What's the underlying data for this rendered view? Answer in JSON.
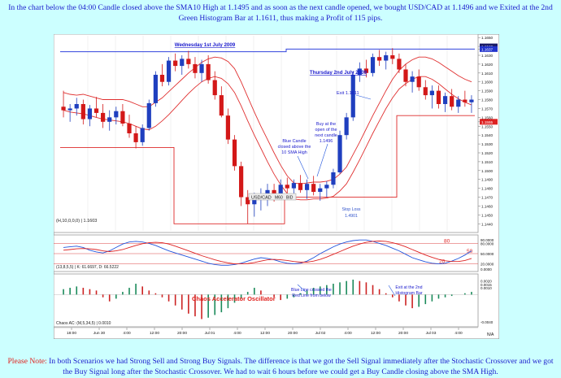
{
  "header_text": "In the chart below the 04:00 Candle closed above the SMA10 High at 1.1495 and as soon as the next candle opened, we bought USD/CAD at 1.1496 and we Exited at the 2nd Green Histogram Bar at 1.1611, thus making a Profit of 115 pips.",
  "footer": {
    "label": "Please Note:",
    "text": " In both Scenarios we had Strong Sell and Strong Buy Signals. The difference is that we got the Sell Signal immediately after the Stochastic Crossover and we got the Buy Signal long after the Stochastic Crossover. We had to wait 6 hours before we could get a Buy Candle closing above the SMA High."
  },
  "chart_data": [
    {
      "type": "candlestick",
      "panel": "price",
      "indicator_label": "(H,10,0,0,0) | 1.1603",
      "price_labels": [
        "1.1650",
        "1.1640",
        "1.1637",
        "1.1630",
        "1.1620",
        "1.1610",
        "1.1600",
        "1.1590",
        "1.1580",
        "1.1570",
        "1.1560",
        "1.1555",
        "1.1550",
        "1.1540",
        "1.1530",
        "1.1520",
        "1.1510",
        "1.1500",
        "1.1490",
        "1.1480",
        "1.1470",
        "1.1460",
        "1.1450",
        "1.1440"
      ],
      "highlighted_prices": {
        "top": "1.1640",
        "mid": "1.1637",
        "last": "1.1555"
      },
      "ylim": [
        1.1432,
        1.1652
      ],
      "candles": [
        {
          "o": 1.1572,
          "h": 1.159,
          "l": 1.156,
          "c": 1.1568
        },
        {
          "o": 1.1568,
          "h": 1.1575,
          "l": 1.1555,
          "c": 1.157
        },
        {
          "o": 1.157,
          "h": 1.1582,
          "l": 1.1562,
          "c": 1.1575
        },
        {
          "o": 1.1575,
          "h": 1.158,
          "l": 1.1552,
          "c": 1.1558
        },
        {
          "o": 1.1558,
          "h": 1.1574,
          "l": 1.155,
          "c": 1.157
        },
        {
          "o": 1.157,
          "h": 1.1583,
          "l": 1.156,
          "c": 1.1565
        },
        {
          "o": 1.1565,
          "h": 1.1575,
          "l": 1.1548,
          "c": 1.1555
        },
        {
          "o": 1.1555,
          "h": 1.1568,
          "l": 1.1545,
          "c": 1.156
        },
        {
          "o": 1.156,
          "h": 1.1572,
          "l": 1.1552,
          "c": 1.1567
        },
        {
          "o": 1.1567,
          "h": 1.1575,
          "l": 1.155,
          "c": 1.1553
        },
        {
          "o": 1.1553,
          "h": 1.1563,
          "l": 1.1537,
          "c": 1.1542
        },
        {
          "o": 1.1542,
          "h": 1.155,
          "l": 1.1525,
          "c": 1.1532
        },
        {
          "o": 1.1532,
          "h": 1.1552,
          "l": 1.1528,
          "c": 1.1548
        },
        {
          "o": 1.1548,
          "h": 1.158,
          "l": 1.1545,
          "c": 1.1576
        },
        {
          "o": 1.1576,
          "h": 1.1612,
          "l": 1.1572,
          "c": 1.1608
        },
        {
          "o": 1.1608,
          "h": 1.162,
          "l": 1.1595,
          "c": 1.16
        },
        {
          "o": 1.16,
          "h": 1.1628,
          "l": 1.1596,
          "c": 1.1624
        },
        {
          "o": 1.1624,
          "h": 1.1632,
          "l": 1.1612,
          "c": 1.1618
        },
        {
          "o": 1.1618,
          "h": 1.163,
          "l": 1.1608,
          "c": 1.1626
        },
        {
          "o": 1.1626,
          "h": 1.1635,
          "l": 1.1615,
          "c": 1.162
        },
        {
          "o": 1.162,
          "h": 1.1628,
          "l": 1.1604,
          "c": 1.161
        },
        {
          "o": 1.161,
          "h": 1.1625,
          "l": 1.16,
          "c": 1.162
        },
        {
          "o": 1.162,
          "h": 1.163,
          "l": 1.1598,
          "c": 1.1602
        },
        {
          "o": 1.1602,
          "h": 1.1612,
          "l": 1.158,
          "c": 1.1585
        },
        {
          "o": 1.1585,
          "h": 1.1595,
          "l": 1.156,
          "c": 1.1562
        },
        {
          "o": 1.1562,
          "h": 1.157,
          "l": 1.153,
          "c": 1.1535
        },
        {
          "o": 1.1535,
          "h": 1.154,
          "l": 1.15,
          "c": 1.1505
        },
        {
          "o": 1.1505,
          "h": 1.151,
          "l": 1.146,
          "c": 1.147
        },
        {
          "o": 1.147,
          "h": 1.1478,
          "l": 1.144,
          "c": 1.1462
        },
        {
          "o": 1.1462,
          "h": 1.1475,
          "l": 1.1448,
          "c": 1.1468
        },
        {
          "o": 1.1468,
          "h": 1.148,
          "l": 1.1455,
          "c": 1.1472
        },
        {
          "o": 1.1472,
          "h": 1.1485,
          "l": 1.146,
          "c": 1.1478
        },
        {
          "o": 1.1478,
          "h": 1.1485,
          "l": 1.1465,
          "c": 1.1474
        },
        {
          "o": 1.1474,
          "h": 1.149,
          "l": 1.1468,
          "c": 1.1484
        },
        {
          "o": 1.1484,
          "h": 1.1492,
          "l": 1.1474,
          "c": 1.148
        },
        {
          "o": 1.148,
          "h": 1.149,
          "l": 1.1472,
          "c": 1.1486
        },
        {
          "o": 1.1486,
          "h": 1.1495,
          "l": 1.1475,
          "c": 1.1478
        },
        {
          "o": 1.1478,
          "h": 1.149,
          "l": 1.1468,
          "c": 1.1485
        },
        {
          "o": 1.1485,
          "h": 1.1494,
          "l": 1.1472,
          "c": 1.1476
        },
        {
          "o": 1.1476,
          "h": 1.1485,
          "l": 1.1466,
          "c": 1.148
        },
        {
          "o": 1.148,
          "h": 1.1488,
          "l": 1.147,
          "c": 1.1484
        },
        {
          "o": 1.1484,
          "h": 1.1502,
          "l": 1.148,
          "c": 1.1498
        },
        {
          "o": 1.1498,
          "h": 1.1545,
          "l": 1.1496,
          "c": 1.154
        },
        {
          "o": 1.154,
          "h": 1.1565,
          "l": 1.1535,
          "c": 1.156
        },
        {
          "o": 1.156,
          "h": 1.1612,
          "l": 1.1556,
          "c": 1.1608
        },
        {
          "o": 1.1608,
          "h": 1.1622,
          "l": 1.16,
          "c": 1.1615
        },
        {
          "o": 1.1615,
          "h": 1.1625,
          "l": 1.1605,
          "c": 1.161
        },
        {
          "o": 1.161,
          "h": 1.1632,
          "l": 1.1606,
          "c": 1.1628
        },
        {
          "o": 1.1628,
          "h": 1.1636,
          "l": 1.1618,
          "c": 1.1624
        },
        {
          "o": 1.1624,
          "h": 1.1634,
          "l": 1.1614,
          "c": 1.163
        },
        {
          "o": 1.163,
          "h": 1.1638,
          "l": 1.162,
          "c": 1.1626
        },
        {
          "o": 1.1626,
          "h": 1.1632,
          "l": 1.161,
          "c": 1.1614
        },
        {
          "o": 1.1614,
          "h": 1.162,
          "l": 1.1595,
          "c": 1.16
        },
        {
          "o": 1.16,
          "h": 1.1612,
          "l": 1.1588,
          "c": 1.1606
        },
        {
          "o": 1.1606,
          "h": 1.1614,
          "l": 1.159,
          "c": 1.1594
        },
        {
          "o": 1.1594,
          "h": 1.1602,
          "l": 1.158,
          "c": 1.1585
        },
        {
          "o": 1.1585,
          "h": 1.1596,
          "l": 1.157,
          "c": 1.159
        },
        {
          "o": 1.159,
          "h": 1.1596,
          "l": 1.157,
          "c": 1.1575
        },
        {
          "o": 1.1575,
          "h": 1.1588,
          "l": 1.1566,
          "c": 1.1584
        },
        {
          "o": 1.1584,
          "h": 1.1592,
          "l": 1.1568,
          "c": 1.1572
        },
        {
          "o": 1.1572,
          "h": 1.1584,
          "l": 1.1565,
          "c": 1.158
        },
        {
          "o": 1.158,
          "h": 1.159,
          "l": 1.1572,
          "c": 1.1577
        },
        {
          "o": 1.1577,
          "h": 1.1585,
          "l": 1.1565,
          "c": 1.158
        }
      ],
      "sma_high": [
        1.1588,
        1.1586,
        1.1585,
        1.1586,
        1.1584,
        1.1582,
        1.158,
        1.158,
        1.158,
        1.158,
        1.1578,
        1.1575,
        1.1572,
        1.1572,
        1.1577,
        1.1582,
        1.1589,
        1.1596,
        1.1603,
        1.161,
        1.1616,
        1.1622,
        1.1626,
        1.1628,
        1.1627,
        1.1623,
        1.1615,
        1.16,
        1.1583,
        1.1566,
        1.155,
        1.1535,
        1.152,
        1.1506,
        1.1494,
        1.1486,
        1.1485,
        1.1486,
        1.1487,
        1.1487,
        1.1488,
        1.149,
        1.1496,
        1.1504,
        1.1518,
        1.1532,
        1.1547,
        1.1562,
        1.1576,
        1.159,
        1.1603,
        1.1613,
        1.162,
        1.1625,
        1.1628,
        1.1628,
        1.1626,
        1.1622,
        1.1617,
        1.1612,
        1.1607,
        1.1603,
        1.16
      ],
      "sma_low": [
        1.1568,
        1.1566,
        1.1565,
        1.1564,
        1.1562,
        1.156,
        1.1558,
        1.1557,
        1.1556,
        1.1555,
        1.1553,
        1.155,
        1.1547,
        1.1546,
        1.155,
        1.1556,
        1.1563,
        1.1571,
        1.1579,
        1.1587,
        1.1594,
        1.16,
        1.1604,
        1.1606,
        1.1604,
        1.1598,
        1.1588,
        1.1573,
        1.1556,
        1.154,
        1.1525,
        1.151,
        1.1496,
        1.1484,
        1.1474,
        1.1468,
        1.1467,
        1.1467,
        1.1468,
        1.1468,
        1.1469,
        1.1471,
        1.1477,
        1.1485,
        1.1498,
        1.1512,
        1.1527,
        1.1542,
        1.1556,
        1.157,
        1.1582,
        1.1592,
        1.1598,
        1.1603,
        1.1606,
        1.1606,
        1.1603,
        1.1598,
        1.1592,
        1.1586,
        1.1581,
        1.1577,
        1.1574
      ]
    },
    {
      "type": "line",
      "panel": "stochastic",
      "indicator_label": "(13,8,5,5) | K: 61.6697, D: 66.5222",
      "axis_labels": [
        "90.0000",
        "80.0000",
        "50.0000",
        "20.0000",
        "0.0000"
      ],
      "level_labels": [
        "80",
        "50",
        "20"
      ],
      "ylim": [
        0,
        100
      ],
      "series": [
        {
          "color": "blue",
          "values": [
            68,
            70,
            72,
            68,
            60,
            55,
            52,
            58,
            68,
            78,
            84,
            86,
            84,
            80,
            74,
            66,
            58,
            52,
            46,
            40,
            34,
            28,
            22,
            18,
            16,
            16,
            18,
            22,
            28,
            34,
            38,
            36,
            32,
            26,
            22,
            20,
            22,
            28,
            38,
            50,
            60,
            70,
            78,
            84,
            88,
            90,
            90,
            86,
            80,
            74,
            66,
            58,
            48,
            38,
            32,
            26,
            22,
            20,
            22,
            28,
            36,
            46,
            58
          ]
        },
        {
          "color": "red",
          "values": [
            60,
            62,
            64,
            65,
            64,
            62,
            58,
            56,
            58,
            62,
            68,
            74,
            79,
            82,
            83,
            82,
            78,
            72,
            65,
            58,
            51,
            44,
            38,
            32,
            27,
            23,
            20,
            20,
            21,
            24,
            28,
            32,
            33,
            32,
            30,
            27,
            25,
            25,
            28,
            33,
            40,
            48,
            56,
            64,
            72,
            78,
            83,
            86,
            87,
            86,
            82,
            77,
            70,
            62,
            54,
            46,
            39,
            33,
            29,
            27,
            27,
            30,
            36
          ]
        }
      ]
    },
    {
      "type": "bar",
      "panel": "chaos_accelerator",
      "indicator_label": "Chaos AC: (M,5,34,5) | 0.0010",
      "title": "Chaos Accelerator Oscillator",
      "axis_labels": [
        "0.0020",
        "0.0010",
        "0.0015",
        "-0.0040"
      ],
      "ylim": [
        -0.0045,
        0.0028
      ],
      "values": [
        0.0008,
        0.001,
        0.0012,
        0.001,
        0.0008,
        0.0006,
        -0.0004,
        -0.001,
        -0.0006,
        0.0004,
        0.001,
        0.0016,
        0.0012,
        0.0006,
        0.0002,
        -0.0004,
        -0.001,
        -0.0016,
        -0.0022,
        -0.0028,
        -0.0032,
        -0.0036,
        -0.0034,
        -0.003,
        -0.0026,
        -0.002,
        -0.0012,
        -0.0006,
        0.0004,
        0.001,
        0.0006,
        0.0,
        -0.0004,
        -0.0008,
        -0.0006,
        -0.0004,
        0.0002,
        0.0006,
        0.001,
        0.0012,
        0.0014,
        0.0016,
        0.0018,
        0.002,
        0.0022,
        0.002,
        0.0018,
        0.0014,
        0.0008,
        0.0002,
        -0.0004,
        -0.001,
        -0.0016,
        -0.002,
        -0.0018,
        -0.0014,
        -0.001,
        -0.0006,
        -0.0004,
        -0.0002,
        0.0,
        0.0002,
        0.0004
      ]
    }
  ],
  "x_labels": [
    "18:00",
    "Jun 30",
    "4:00",
    "12:00",
    "20:00",
    "Jul 01",
    "4:00",
    "12:00",
    "20:00",
    "Jul 02",
    "4:00",
    "12:00",
    "20:00",
    "Jul 03",
    "4:00"
  ],
  "annotations": {
    "wed": "Wednesday 1st July 2009",
    "thu": "Thursday 2nd July 2009",
    "exit": "Exit 1.1611",
    "buy": [
      "Buy at the",
      "open of the",
      "next candle",
      "1.1496"
    ],
    "blue_candle": [
      "Blue Candle",
      "closed above the",
      "10 SMA High"
    ],
    "stop": [
      "Stop Loss",
      "1.4901"
    ],
    "stoch_cross": [
      "Blue Line crossed the",
      "Red Line from below"
    ],
    "exit_hist": [
      "Exit at the 2nd",
      "Histogram Bar"
    ]
  },
  "toolbar": {
    "symbol": "USD/CAD",
    "tf": "M60",
    "bid": "BID",
    "na": "N/A"
  },
  "colors": {
    "page_bg": "#ccffff",
    "text": "#1a1acc",
    "note": "#e0201c",
    "bull": "#1f3fbf",
    "bear": "#d31818",
    "sma": "#e03030",
    "stoch_k": "#2255dd",
    "stoch_d": "#dd2222",
    "frame": "#3344dd",
    "stop_frame": "#dd2a2a",
    "hist_green": "#1a8a5a",
    "hist_red": "#cc2222"
  }
}
